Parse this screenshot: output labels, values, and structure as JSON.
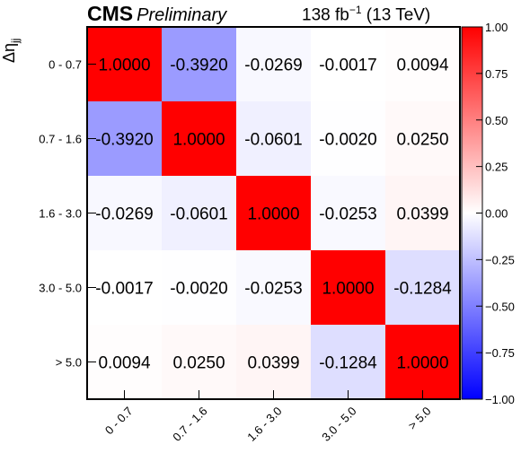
{
  "header": {
    "experiment": "CMS",
    "status": "Preliminary",
    "lumi_value": "138 fb",
    "lumi_exponent": "−1",
    "energy": "(13 TeV)"
  },
  "chart_data": {
    "type": "heatmap",
    "title": "",
    "xlabel": "",
    "ylabel": "Δη",
    "ylabel_subscript": "jj",
    "categories": [
      "0 - 0.7",
      "0.7 - 1.6",
      "1.6 - 3.0",
      "3.0 - 5.0",
      "> 5.0"
    ],
    "x_tick_labels": [
      "0 - 0.7",
      "0.7 - 1.6",
      "1.6 - 3.0",
      "3.0 - 5.0",
      "> 5.0"
    ],
    "y_tick_labels": [
      "0 - 0.7",
      "0.7 - 1.6",
      "1.6 - 3.0",
      "3.0 - 5.0",
      "> 5.0"
    ],
    "matrix": [
      [
        1.0,
        -0.392,
        -0.0269,
        -0.0017,
        0.0094
      ],
      [
        -0.392,
        1.0,
        -0.0601,
        -0.002,
        0.025
      ],
      [
        -0.0269,
        -0.0601,
        1.0,
        -0.0253,
        0.0399
      ],
      [
        -0.0017,
        -0.002,
        -0.0253,
        1.0,
        -0.1284
      ],
      [
        0.0094,
        0.025,
        0.0399,
        -0.1284,
        1.0
      ]
    ],
    "cell_labels": [
      [
        "1.0000",
        "-0.3920",
        "-0.0269",
        "-0.0017",
        "0.0094"
      ],
      [
        "-0.3920",
        "1.0000",
        "-0.0601",
        "-0.0020",
        "0.0250"
      ],
      [
        "-0.0269",
        "-0.0601",
        "1.0000",
        "-0.0253",
        "0.0399"
      ],
      [
        "-0.0017",
        "-0.0020",
        "-0.0253",
        "1.0000",
        "-0.1284"
      ],
      [
        "0.0094",
        "0.0250",
        "0.0399",
        "-0.1284",
        "1.0000"
      ]
    ],
    "zlim": [
      -1.0,
      1.0
    ],
    "colorbar_ticks": [
      1.0,
      0.75,
      0.5,
      0.25,
      0.0,
      -0.25,
      -0.5,
      -0.75,
      -1.0
    ],
    "colorbar_tick_labels": [
      "1.00",
      "0.75",
      "0.50",
      "0.25",
      "0.00",
      "−0.25",
      "−0.50",
      "−0.75",
      "−1.00"
    ],
    "colormap": {
      "low": "#0000ff",
      "mid": "#ffffff",
      "high": "#ff0000"
    },
    "grid": false,
    "legend": "colorbar-right"
  }
}
